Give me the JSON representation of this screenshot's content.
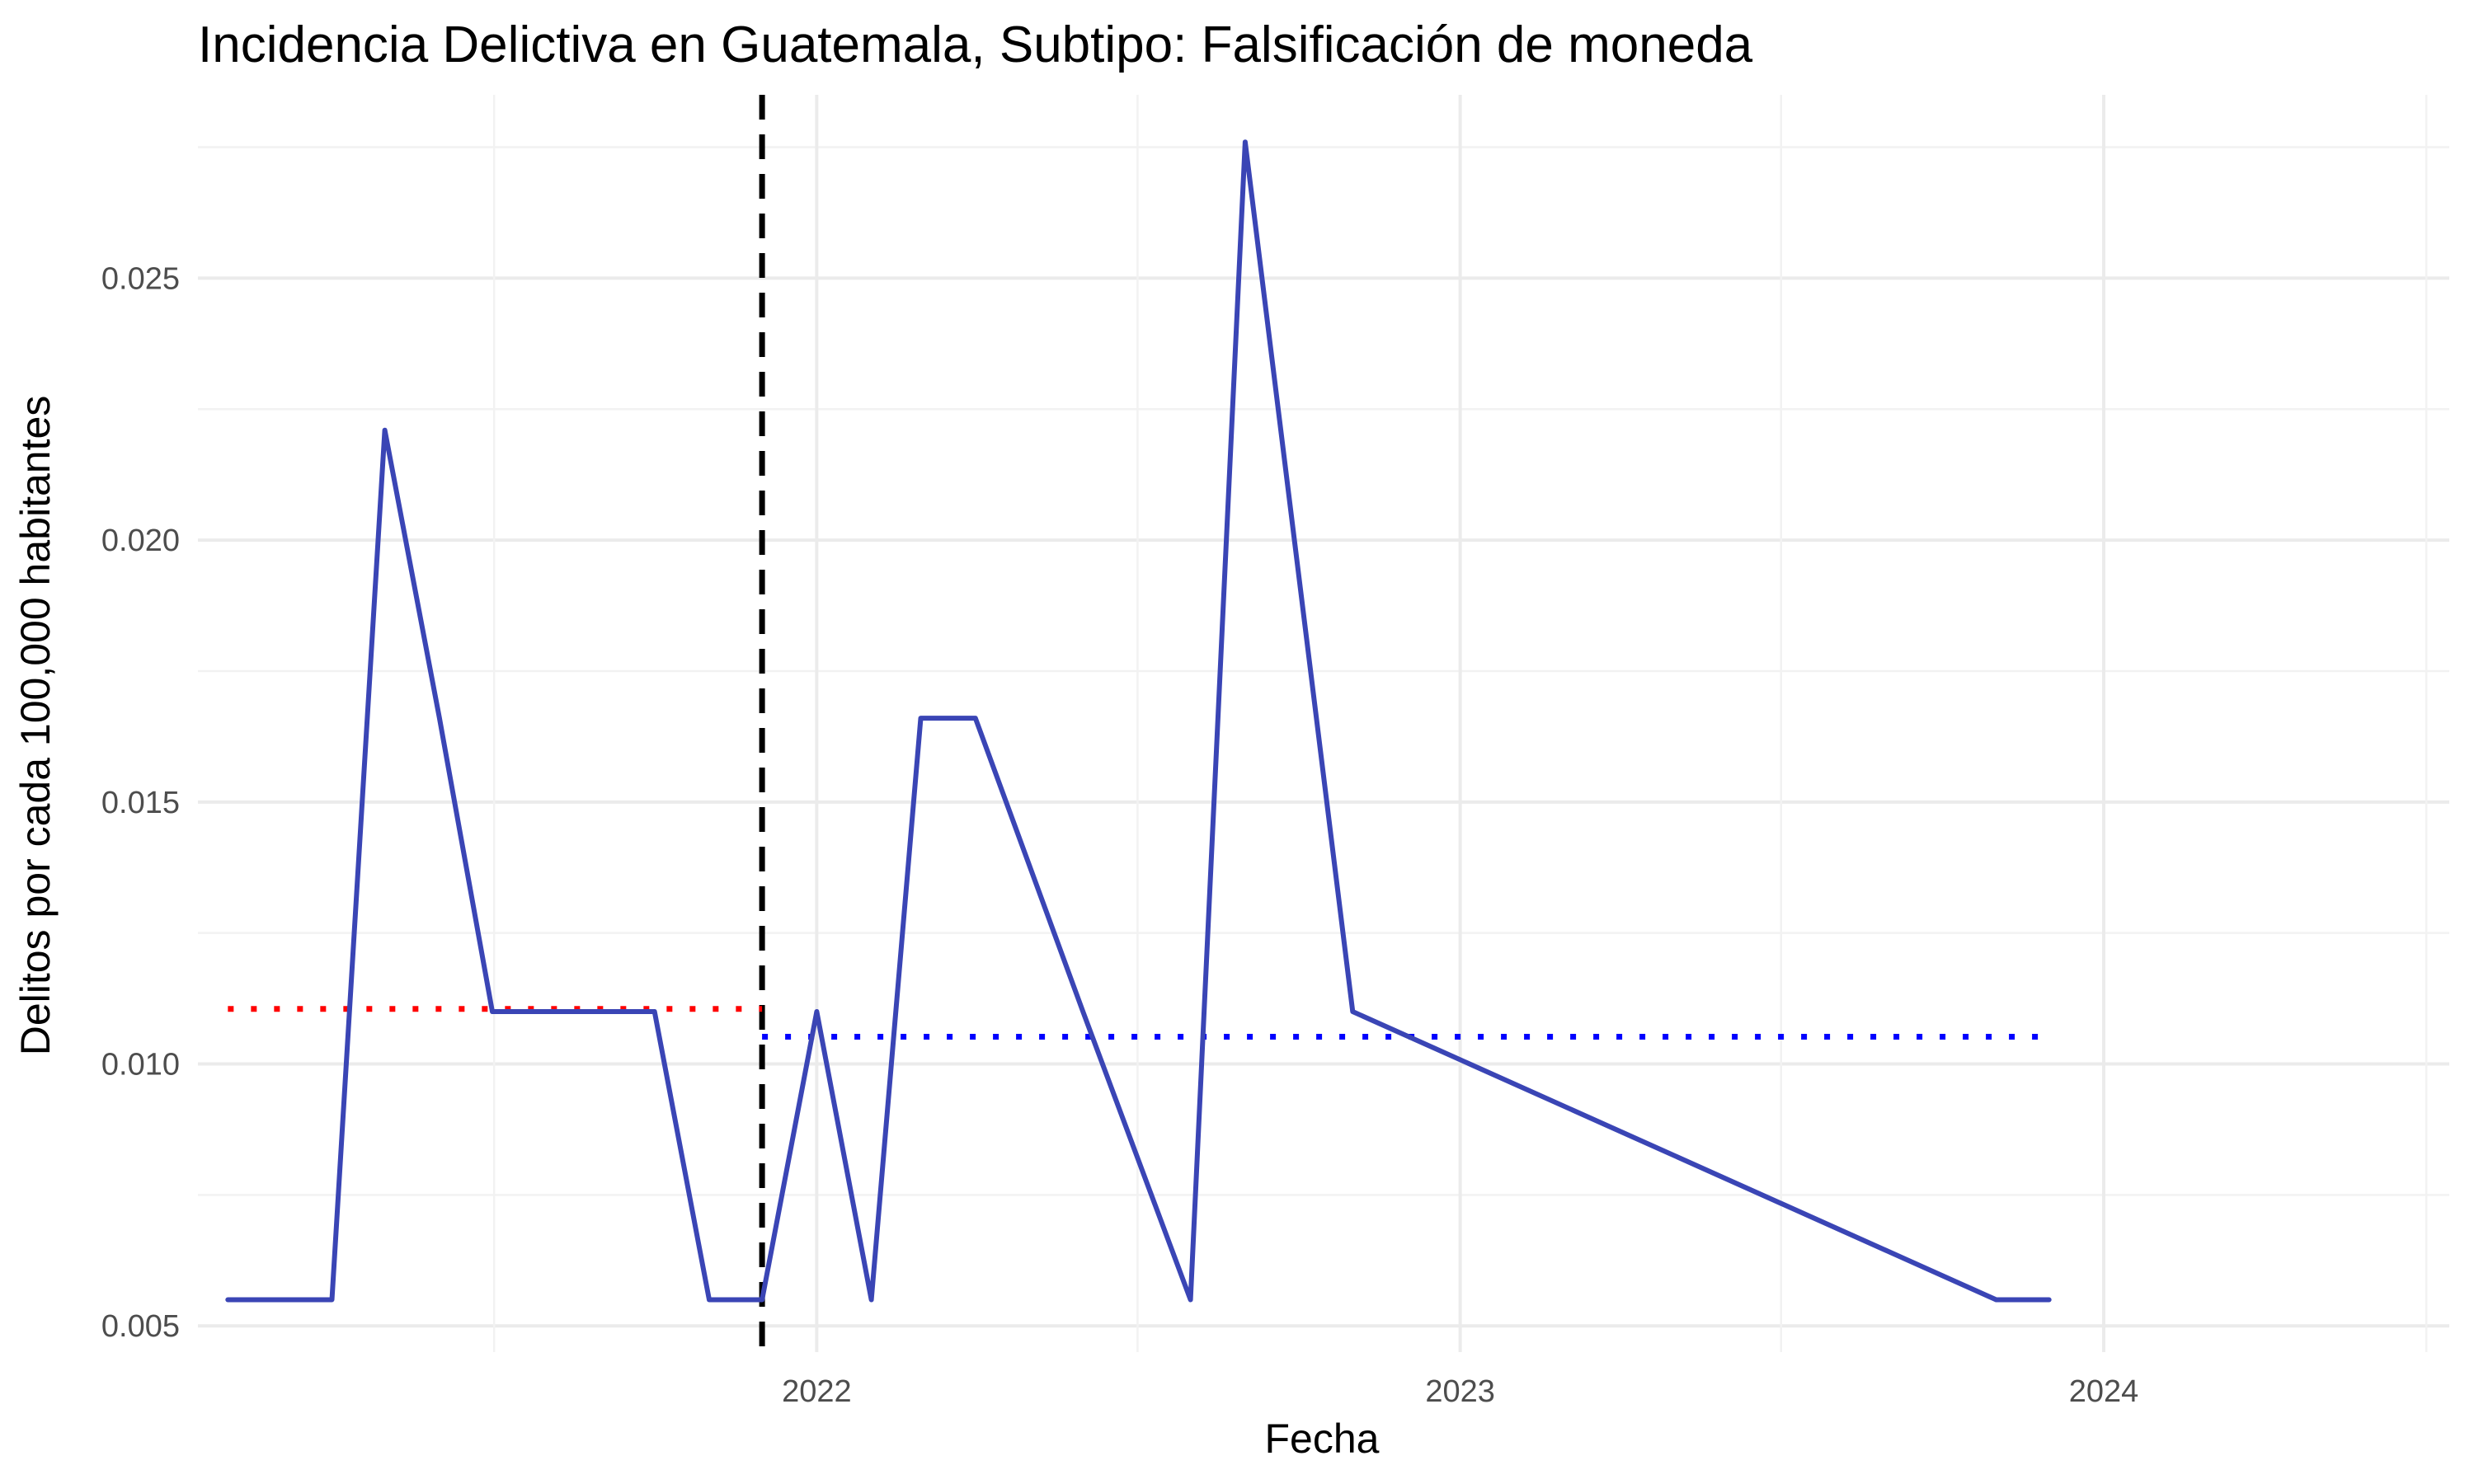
{
  "chart_data": {
    "type": "line",
    "title": "Incidencia Delictiva en Guatemala, Subtipo: Falsificación de moneda",
    "xlabel": "Fecha",
    "ylabel": "Delitos por cada 100,000 habitantes",
    "x_ticks": [
      "2022",
      "2023",
      "2024"
    ],
    "y_ticks": [
      "0.005",
      "0.010",
      "0.015",
      "0.020",
      "0.025"
    ],
    "ylim": [
      0.0045,
      0.0285
    ],
    "xlim": [
      "2021-01-15",
      "2024-07-15"
    ],
    "grid": true,
    "series": [
      {
        "color": "#3a45b5",
        "points": [
          {
            "x": "2021-02-01",
            "y": 0.0055
          },
          {
            "x": "2021-03-01",
            "y": 0.0055
          },
          {
            "x": "2021-04-01",
            "y": 0.0055
          },
          {
            "x": "2021-05-01",
            "y": 0.0221
          },
          {
            "x": "2021-06-01",
            "y": 0.0166
          },
          {
            "x": "2021-07-01",
            "y": 0.011
          },
          {
            "x": "2021-08-01",
            "y": 0.011
          },
          {
            "x": "2021-09-01",
            "y": 0.011
          },
          {
            "x": "2021-10-01",
            "y": 0.011
          },
          {
            "x": "2021-11-01",
            "y": 0.0055
          },
          {
            "x": "2021-12-01",
            "y": 0.0055
          },
          {
            "x": "2022-01-01",
            "y": 0.011
          },
          {
            "x": "2022-02-01",
            "y": 0.0055
          },
          {
            "x": "2022-03-01",
            "y": 0.0166
          },
          {
            "x": "2022-04-01",
            "y": 0.0166
          },
          {
            "x": "2022-06-01",
            "y": 0.011
          },
          {
            "x": "2022-08-01",
            "y": 0.0055
          },
          {
            "x": "2022-09-01",
            "y": 0.0276
          },
          {
            "x": "2022-11-01",
            "y": 0.011
          },
          {
            "x": "2023-11-01",
            "y": 0.0055
          },
          {
            "x": "2023-12-01",
            "y": 0.0055
          }
        ]
      }
    ],
    "reference_lines": [
      {
        "type": "vertical",
        "x": "2021-12-01",
        "style": "dashed",
        "color": "#000000"
      },
      {
        "type": "horizontal",
        "y": 0.01105,
        "x_start": "2021-02-01",
        "x_end": "2021-12-01",
        "style": "dotted",
        "color": "#ff0000"
      },
      {
        "type": "horizontal",
        "y": 0.01052,
        "x_start": "2021-12-01",
        "x_end": "2023-12-01",
        "style": "dotted",
        "color": "#0000ff"
      }
    ]
  }
}
